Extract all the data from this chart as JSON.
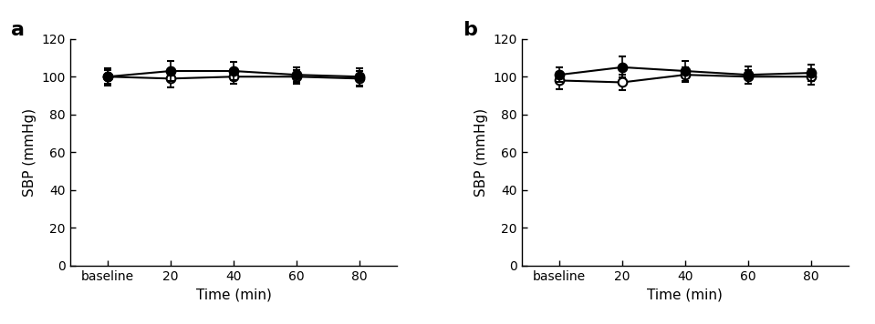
{
  "panel_a": {
    "label": "a",
    "filled_y": [
      100.0,
      103.0,
      103.0,
      101.0,
      100.0
    ],
    "filled_yerr": [
      3.5,
      5.5,
      5.0,
      4.0,
      4.5
    ],
    "open_y": [
      100.0,
      99.0,
      100.0,
      100.0,
      99.0
    ],
    "open_yerr": [
      4.5,
      4.5,
      3.5,
      3.5,
      4.0
    ]
  },
  "panel_b": {
    "label": "b",
    "filled_y": [
      101.0,
      105.0,
      103.0,
      101.0,
      102.0
    ],
    "filled_yerr": [
      4.0,
      5.5,
      5.5,
      4.5,
      4.5
    ],
    "open_y": [
      98.0,
      97.0,
      101.0,
      100.0,
      100.0
    ],
    "open_yerr": [
      4.5,
      4.0,
      4.0,
      3.5,
      4.0
    ]
  },
  "x_labels": [
    "baseline",
    "20",
    "40",
    "60",
    "80"
  ],
  "x_positions": [
    0,
    1,
    2,
    3,
    4
  ],
  "xlabel": "Time (min)",
  "ylabel": "SBP (mmHg)",
  "ylim": [
    0,
    120
  ],
  "yticks": [
    0,
    20,
    40,
    60,
    80,
    100,
    120
  ],
  "filled_color": "#000000",
  "open_color": "#ffffff",
  "marker_size": 7,
  "linewidth": 1.5,
  "capsize": 3,
  "elinewidth": 1.2,
  "label_fontsize": 16,
  "tick_fontsize": 10,
  "axis_label_fontsize": 11
}
